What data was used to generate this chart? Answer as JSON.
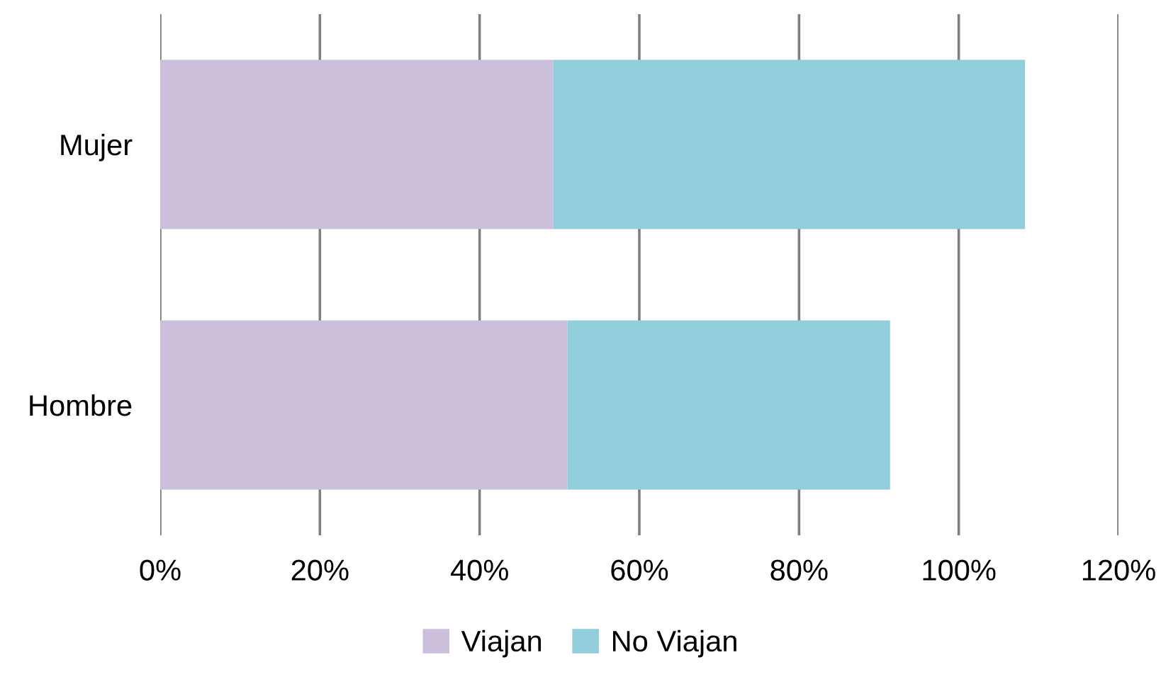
{
  "chart_data": {
    "type": "bar",
    "orientation": "horizontal",
    "stacked": true,
    "categories": [
      "Mujer",
      "Hombre"
    ],
    "series": [
      {
        "name": "Viajan",
        "color": "#cbbfdb",
        "values": [
          49.2,
          51.0
        ]
      },
      {
        "name": "No Viajan",
        "color": "#92cddc",
        "values": [
          59.1,
          40.4
        ]
      }
    ],
    "xlim": [
      0,
      120
    ],
    "xticks": [
      {
        "value": 0,
        "label": "0%"
      },
      {
        "value": 20,
        "label": "20%"
      },
      {
        "value": 40,
        "label": "40%"
      },
      {
        "value": 60,
        "label": "60%"
      },
      {
        "value": 80,
        "label": "80%"
      },
      {
        "value": 100,
        "label": "100%"
      },
      {
        "value": 120,
        "label": "120%"
      }
    ],
    "grid": "x",
    "legend": "bottom"
  }
}
